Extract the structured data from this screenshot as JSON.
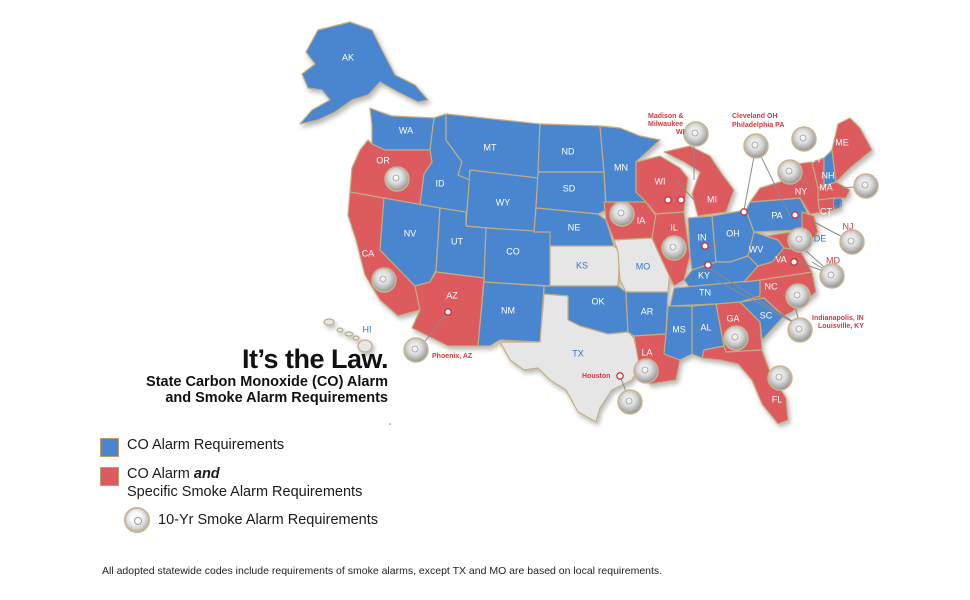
{
  "title": "It’s the Law.",
  "subtitle_line1": "State Carbon Monoxide (CO) Alarm",
  "subtitle_line2": "and Smoke Alarm Requirements",
  "colors": {
    "co": "#4a86cf",
    "co_and_smoke": "#dd5a5f",
    "none": "#e6e6e6",
    "border": "#c2ac80",
    "label_on_blue": "#ffffff",
    "label_on_red": "#ffffff",
    "label_on_gray": "#3b73c2",
    "callout_text": "#d23a44",
    "leader": "#888888"
  },
  "legend": {
    "co_label": "CO Alarm Requirements",
    "co_smoke_label_a": "CO Alarm ",
    "co_smoke_label_b": "and",
    "co_smoke_label_c": "Specific Smoke Alarm Requirements",
    "ten_year_label": "10-Yr Smoke Alarm Requirements"
  },
  "footnote": "All adopted statewide codes include requirements of smoke alarms, except TX and MO are based on local requirements.",
  "states": {
    "WA": "co",
    "OR": "co_and_smoke",
    "CA": "co_and_smoke",
    "ID": "co",
    "NV": "co",
    "MT": "co",
    "WY": "co",
    "UT": "co",
    "AZ": "co_and_smoke",
    "CO": "co",
    "NM": "co",
    "ND": "co",
    "SD": "co",
    "NE": "co",
    "KS": "none",
    "OK": "co",
    "TX": "none",
    "MN": "co",
    "IA": "co_and_smoke",
    "MO": "none",
    "AR": "co",
    "LA": "co_and_smoke",
    "WI": "co_and_smoke",
    "IL": "co_and_smoke",
    "MI": "co_and_smoke",
    "IN": "co",
    "OH": "co",
    "KY": "co",
    "TN": "co",
    "MS": "co",
    "AL": "co",
    "GA": "co_and_smoke",
    "FL": "co_and_smoke",
    "SC": "co",
    "NC": "co_and_smoke",
    "VA": "co_and_smoke",
    "WV": "co",
    "PA": "co",
    "NY": "co_and_smoke",
    "VT": "co_and_smoke",
    "ME": "co_and_smoke",
    "NH": "co",
    "MA": "co_and_smoke",
    "RI": "co",
    "CT": "co_and_smoke",
    "NJ": "co_and_smoke",
    "DE": "co",
    "MD": "co_and_smoke",
    "AK": "co",
    "HI": "none"
  },
  "ten_year_states": [
    "OR",
    "CA",
    "IA",
    "IL",
    "LA",
    "GA",
    "FL",
    "NY",
    "VT",
    "MA",
    "CT",
    "NJ",
    "MD",
    "VA",
    "NC"
  ],
  "callouts": {
    "madison": "Madison &",
    "milwaukee": "Milwaukee",
    "wi": "WI",
    "cleveland": "Cleveland OH",
    "philadelphia": "Philadelphia PA",
    "indianapolis": "Indianapolis, IN",
    "louisville": "Louisville, KY",
    "phoenix": "Phoenix, AZ",
    "houston": "Houston"
  }
}
